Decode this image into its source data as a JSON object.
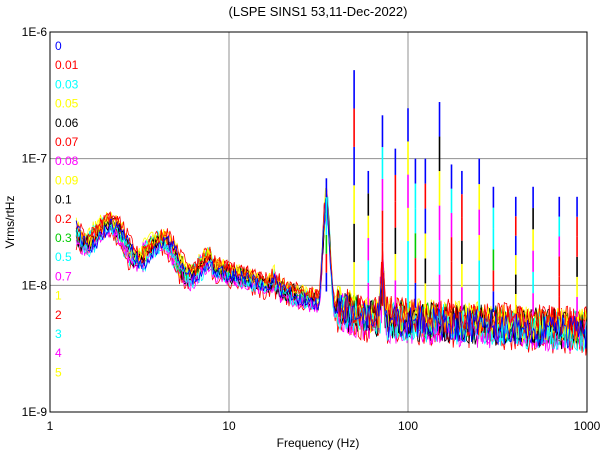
{
  "chart_data": {
    "type": "line",
    "title": "(LSPE SINS1 53,11-Dec-2022)",
    "xlabel": "Frequency (Hz)",
    "ylabel": "Vrms/rtHz",
    "xscale": "log",
    "yscale": "log",
    "xlim": [
      1,
      1000
    ],
    "ylim": [
      1e-09,
      1e-06
    ],
    "xticks": [
      "1",
      "10",
      "100",
      "1000"
    ],
    "yticks": [
      "1E-9",
      "1E-8",
      "1E-7",
      "1E-6"
    ],
    "grid": "major",
    "legend_position": "top-left inside",
    "series": [
      {
        "name": "0",
        "color": "#0000ff"
      },
      {
        "name": "0.01",
        "color": "#ff0000"
      },
      {
        "name": "0.03",
        "color": "#00ffff"
      },
      {
        "name": "0.05",
        "color": "#ffff00"
      },
      {
        "name": "0.06",
        "color": "#000000"
      },
      {
        "name": "0.07",
        "color": "#ff0000"
      },
      {
        "name": "0.08",
        "color": "#ff00ff"
      },
      {
        "name": "0.09",
        "color": "#ffff00"
      },
      {
        "name": "0.1",
        "color": "#000000"
      },
      {
        "name": "0.2",
        "color": "#ff0000"
      },
      {
        "name": "0.3",
        "color": "#00cc00"
      },
      {
        "name": "0.5",
        "color": "#00ffff"
      },
      {
        "name": "0.7",
        "color": "#ff00ff"
      },
      {
        "name": "1",
        "color": "#ffff00"
      },
      {
        "name": "2",
        "color": "#ff0000"
      },
      {
        "name": "3",
        "color": "#00ffff"
      },
      {
        "name": "4",
        "color": "#ff00ff"
      },
      {
        "name": "5",
        "color": "#ffff00"
      }
    ],
    "peaks": [
      {
        "x": 35,
        "y": 7e-08
      },
      {
        "x": 50,
        "y": 5e-07
      },
      {
        "x": 60,
        "y": 8e-08
      },
      {
        "x": 72,
        "y": 2.2e-07
      },
      {
        "x": 85,
        "y": 1.2e-07
      },
      {
        "x": 100,
        "y": 2.5e-07
      },
      {
        "x": 110,
        "y": 1e-07
      },
      {
        "x": 125,
        "y": 1e-07
      },
      {
        "x": 150,
        "y": 2.8e-07
      },
      {
        "x": 175,
        "y": 9e-08
      },
      {
        "x": 200,
        "y": 8e-08
      },
      {
        "x": 250,
        "y": 1e-07
      },
      {
        "x": 300,
        "y": 6e-08
      },
      {
        "x": 400,
        "y": 5e-08
      },
      {
        "x": 500,
        "y": 6e-08
      },
      {
        "x": 700,
        "y": 5e-08
      },
      {
        "x": 880,
        "y": 5e-08
      }
    ]
  }
}
